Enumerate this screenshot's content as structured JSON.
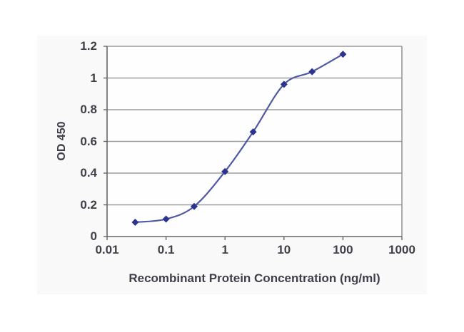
{
  "chart_data": {
    "type": "line",
    "title": "",
    "xlabel": "Recombinant Protein Concentration (ng/ml)",
    "ylabel": "OD 450",
    "x_scale": "log",
    "x_range": [
      0.01,
      1000
    ],
    "x_ticks": [
      "0.01",
      "0.1",
      "1",
      "10",
      "100",
      "1000"
    ],
    "y_range": [
      0,
      1.2
    ],
    "y_ticks": [
      "0",
      "0.2",
      "0.4",
      "0.6",
      "0.8",
      "1",
      "1.2"
    ],
    "grid": "horizontal",
    "legend": "none",
    "series": [
      {
        "name": "OD 450",
        "marker": "diamond",
        "smooth": true,
        "x": [
          0.03,
          0.1,
          0.3,
          1,
          3,
          10,
          30,
          100
        ],
        "y": [
          0.09,
          0.11,
          0.19,
          0.41,
          0.66,
          0.96,
          1.04,
          1.15
        ]
      }
    ]
  },
  "colors": {
    "chart_background": "#f9f9f9",
    "plot_background": "#fefefe",
    "gridline": "#9c9c9c",
    "plot_border": "#8a8a8a",
    "axis_line": "#666666",
    "series_line": "#4f59a5",
    "marker_fill": "#2b348e",
    "text": "#3f3f49"
  }
}
